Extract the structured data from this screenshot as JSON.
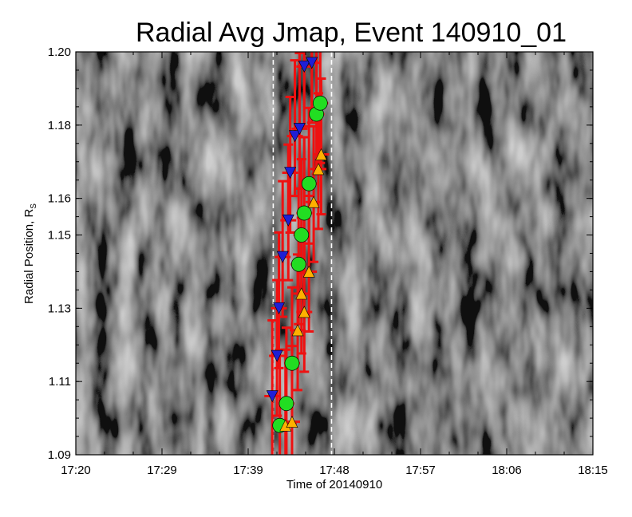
{
  "chart_data": {
    "type": "heatmap",
    "title": "Radial Avg Jmap, Event 140910_01",
    "xlabel": "Time of 20140910",
    "ylabel": "Radial Position, R",
    "ylabel_sub": "S",
    "x_ticks": [
      "17:20",
      "17:29",
      "17:39",
      "17:48",
      "17:57",
      "18:06",
      "18:15"
    ],
    "x_range_minutes": [
      0,
      55
    ],
    "y_ticks": [
      "1.09",
      "1.11",
      "1.13",
      "1.15",
      "1.16",
      "1.18",
      "1.20"
    ],
    "y_tick_values": [
      1.09,
      1.11,
      1.13,
      1.15,
      1.16,
      1.18,
      1.2
    ],
    "ylim": [
      1.09,
      1.2
    ],
    "colormap": "grayscale",
    "dashed_time_markers_minutes": [
      21,
      27.2
    ],
    "markers": {
      "down_triangles": {
        "color": "#1f1fd6",
        "points": [
          {
            "t": 20.9,
            "r": 1.106
          },
          {
            "t": 21.4,
            "r": 1.117
          },
          {
            "t": 21.6,
            "r": 1.13
          },
          {
            "t": 22.0,
            "r": 1.144
          },
          {
            "t": 22.6,
            "r": 1.154
          },
          {
            "t": 22.8,
            "r": 1.167
          },
          {
            "t": 23.3,
            "r": 1.177
          },
          {
            "t": 23.8,
            "r": 1.179
          },
          {
            "t": 24.3,
            "r": 1.196
          },
          {
            "t": 25.1,
            "r": 1.197
          }
        ]
      },
      "circles": {
        "color": "#22dd22",
        "points": [
          {
            "t": 21.7,
            "r": 1.098
          },
          {
            "t": 22.4,
            "r": 1.104
          },
          {
            "t": 23.0,
            "r": 1.115
          },
          {
            "t": 23.7,
            "r": 1.142
          },
          {
            "t": 24.0,
            "r": 1.15
          },
          {
            "t": 24.3,
            "r": 1.156
          },
          {
            "t": 24.8,
            "r": 1.164
          },
          {
            "t": 25.6,
            "r": 1.183
          },
          {
            "t": 26.0,
            "r": 1.186
          }
        ]
      },
      "up_triangles": {
        "color": "#ffb000",
        "points": [
          {
            "t": 22.3,
            "r": 1.098
          },
          {
            "t": 23.0,
            "r": 1.099
          },
          {
            "t": 23.6,
            "r": 1.124
          },
          {
            "t": 24.0,
            "r": 1.134
          },
          {
            "t": 24.3,
            "r": 1.129
          },
          {
            "t": 24.8,
            "r": 1.14
          },
          {
            "t": 25.3,
            "r": 1.159
          },
          {
            "t": 25.8,
            "r": 1.168
          },
          {
            "t": 26.1,
            "r": 1.172
          }
        ]
      }
    },
    "error_bar_color": "#ee1111"
  }
}
